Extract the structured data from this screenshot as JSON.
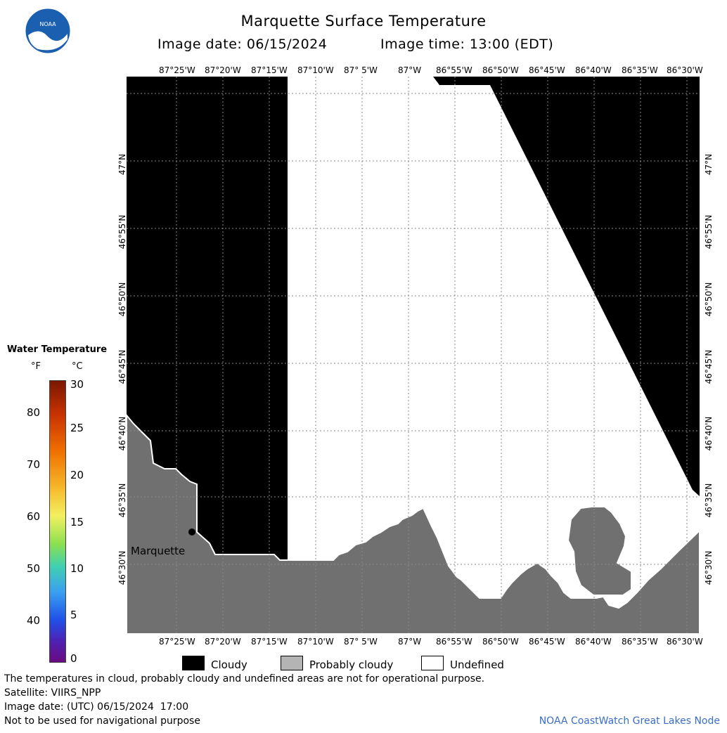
{
  "header": {
    "title": "Marquette Surface Temperature",
    "image_date_label": "Image date: 06/15/2024",
    "image_time_label": "Image time: 13:00 (EDT)"
  },
  "logo": {
    "text": "NOAA",
    "icon": "noaa-logo"
  },
  "map": {
    "lon_labels": [
      "87°25'W",
      "87°20'W",
      "87°15'W",
      "87°10'W",
      "87° 5'W",
      "87°W",
      "86°55'W",
      "86°50'W",
      "86°45'W",
      "86°40'W",
      "86°35'W",
      "86°30'W"
    ],
    "lat_labels": [
      "47°N",
      "46°55'N",
      "46°50'N",
      "46°45'N",
      "46°40'N",
      "46°35'N",
      "46°30'N"
    ],
    "city": {
      "name": "Marquette"
    },
    "colors": {
      "land": "#707070",
      "cloud": "#000000",
      "undefined": "#ffffff"
    }
  },
  "colorbar": {
    "title": "Water Temperature",
    "unit_f": "°F",
    "unit_c": "°C",
    "f_ticks": [
      "80",
      "70",
      "60",
      "50",
      "40"
    ],
    "c_ticks": [
      "30",
      "25",
      "20",
      "15",
      "10",
      "5",
      "0"
    ]
  },
  "legend": {
    "items": [
      {
        "label": "Cloudy",
        "color": "#000000"
      },
      {
        "label": "Probably cloudy",
        "color": "#b4b4b4"
      },
      {
        "label": "Undefined",
        "color": "#ffffff"
      }
    ]
  },
  "footer": {
    "disclaimer": "The temperatures in cloud, probably cloudy and undefined areas are not for operational purpose.",
    "satellite": "Satellite: VIIRS_NPP",
    "utc_date": "Image date: (UTC) 06/15/2024  17:00",
    "nav_warning": "Not to be used for navigational purpose",
    "credit": "NOAA CoastWatch Great Lakes Node"
  }
}
